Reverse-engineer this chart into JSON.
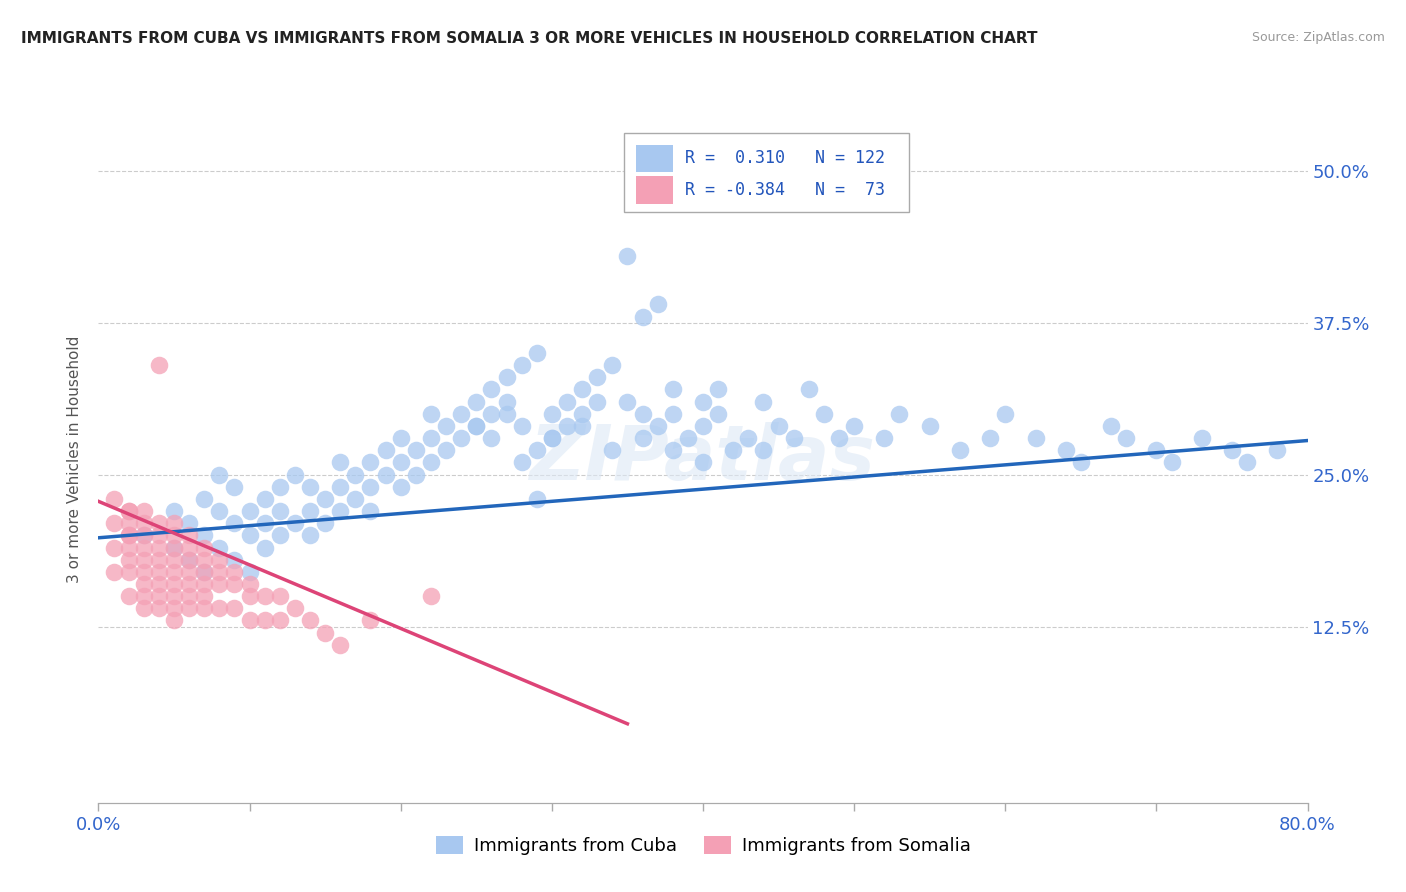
{
  "title": "IMMIGRANTS FROM CUBA VS IMMIGRANTS FROM SOMALIA 3 OR MORE VEHICLES IN HOUSEHOLD CORRELATION CHART",
  "source": "Source: ZipAtlas.com",
  "ylabel": "3 or more Vehicles in Household",
  "yticks": [
    "12.5%",
    "25.0%",
    "37.5%",
    "50.0%"
  ],
  "ytick_vals": [
    0.125,
    0.25,
    0.375,
    0.5
  ],
  "xlim": [
    0.0,
    0.8
  ],
  "ylim": [
    -0.02,
    0.545
  ],
  "cuba_color": "#a8c8f0",
  "somalia_color": "#f4a0b5",
  "cuba_line_color": "#2266bb",
  "somalia_line_color": "#dd4477",
  "legend_cuba_R": "0.310",
  "legend_cuba_N": "122",
  "legend_somalia_R": "-0.384",
  "legend_somalia_N": "73",
  "watermark": "ZIPatlas",
  "cuba_scatter_x": [
    0.03,
    0.05,
    0.05,
    0.06,
    0.06,
    0.07,
    0.07,
    0.07,
    0.08,
    0.08,
    0.08,
    0.09,
    0.09,
    0.09,
    0.1,
    0.1,
    0.1,
    0.11,
    0.11,
    0.11,
    0.12,
    0.12,
    0.12,
    0.13,
    0.13,
    0.14,
    0.14,
    0.14,
    0.15,
    0.15,
    0.16,
    0.16,
    0.16,
    0.17,
    0.17,
    0.18,
    0.18,
    0.18,
    0.19,
    0.19,
    0.2,
    0.2,
    0.2,
    0.21,
    0.21,
    0.22,
    0.22,
    0.22,
    0.23,
    0.23,
    0.24,
    0.24,
    0.25,
    0.25,
    0.26,
    0.26,
    0.27,
    0.27,
    0.28,
    0.28,
    0.29,
    0.29,
    0.3,
    0.3,
    0.31,
    0.31,
    0.32,
    0.32,
    0.33,
    0.33,
    0.34,
    0.35,
    0.35,
    0.36,
    0.36,
    0.37,
    0.37,
    0.38,
    0.38,
    0.39,
    0.4,
    0.4,
    0.41,
    0.41,
    0.42,
    0.43,
    0.44,
    0.44,
    0.45,
    0.46,
    0.47,
    0.48,
    0.49,
    0.5,
    0.52,
    0.53,
    0.55,
    0.57,
    0.59,
    0.6,
    0.62,
    0.64,
    0.65,
    0.67,
    0.68,
    0.7,
    0.71,
    0.73,
    0.75,
    0.76,
    0.78,
    0.25,
    0.26,
    0.27,
    0.28,
    0.29,
    0.3,
    0.32,
    0.34,
    0.36,
    0.38,
    0.4
  ],
  "cuba_scatter_y": [
    0.2,
    0.22,
    0.19,
    0.21,
    0.18,
    0.23,
    0.2,
    0.17,
    0.22,
    0.19,
    0.25,
    0.21,
    0.18,
    0.24,
    0.22,
    0.2,
    0.17,
    0.23,
    0.21,
    0.19,
    0.24,
    0.22,
    0.2,
    0.25,
    0.21,
    0.24,
    0.22,
    0.2,
    0.23,
    0.21,
    0.26,
    0.24,
    0.22,
    0.25,
    0.23,
    0.26,
    0.24,
    0.22,
    0.27,
    0.25,
    0.28,
    0.26,
    0.24,
    0.27,
    0.25,
    0.3,
    0.28,
    0.26,
    0.29,
    0.27,
    0.3,
    0.28,
    0.31,
    0.29,
    0.32,
    0.3,
    0.33,
    0.31,
    0.34,
    0.26,
    0.35,
    0.23,
    0.3,
    0.28,
    0.31,
    0.29,
    0.32,
    0.3,
    0.33,
    0.31,
    0.34,
    0.43,
    0.31,
    0.38,
    0.3,
    0.39,
    0.29,
    0.32,
    0.3,
    0.28,
    0.31,
    0.29,
    0.32,
    0.3,
    0.27,
    0.28,
    0.27,
    0.31,
    0.29,
    0.28,
    0.32,
    0.3,
    0.28,
    0.29,
    0.28,
    0.3,
    0.29,
    0.27,
    0.28,
    0.3,
    0.28,
    0.27,
    0.26,
    0.29,
    0.28,
    0.27,
    0.26,
    0.28,
    0.27,
    0.26,
    0.27,
    0.29,
    0.28,
    0.3,
    0.29,
    0.27,
    0.28,
    0.29,
    0.27,
    0.28,
    0.27,
    0.26
  ],
  "somalia_scatter_x": [
    0.01,
    0.01,
    0.01,
    0.01,
    0.02,
    0.02,
    0.02,
    0.02,
    0.02,
    0.02,
    0.02,
    0.02,
    0.02,
    0.03,
    0.03,
    0.03,
    0.03,
    0.03,
    0.03,
    0.03,
    0.03,
    0.03,
    0.04,
    0.04,
    0.04,
    0.04,
    0.04,
    0.04,
    0.04,
    0.04,
    0.04,
    0.05,
    0.05,
    0.05,
    0.05,
    0.05,
    0.05,
    0.05,
    0.05,
    0.05,
    0.06,
    0.06,
    0.06,
    0.06,
    0.06,
    0.06,
    0.06,
    0.07,
    0.07,
    0.07,
    0.07,
    0.07,
    0.07,
    0.08,
    0.08,
    0.08,
    0.08,
    0.09,
    0.09,
    0.09,
    0.1,
    0.1,
    0.1,
    0.11,
    0.11,
    0.12,
    0.12,
    0.13,
    0.14,
    0.15,
    0.16,
    0.18,
    0.22
  ],
  "somalia_scatter_y": [
    0.23,
    0.21,
    0.19,
    0.17,
    0.22,
    0.21,
    0.2,
    0.19,
    0.18,
    0.17,
    0.15,
    0.22,
    0.2,
    0.22,
    0.21,
    0.2,
    0.19,
    0.18,
    0.17,
    0.16,
    0.15,
    0.14,
    0.21,
    0.2,
    0.19,
    0.18,
    0.17,
    0.16,
    0.15,
    0.14,
    0.34,
    0.21,
    0.2,
    0.19,
    0.18,
    0.17,
    0.16,
    0.15,
    0.14,
    0.13,
    0.2,
    0.19,
    0.18,
    0.17,
    0.16,
    0.15,
    0.14,
    0.19,
    0.18,
    0.17,
    0.16,
    0.15,
    0.14,
    0.18,
    0.17,
    0.16,
    0.14,
    0.17,
    0.16,
    0.14,
    0.16,
    0.15,
    0.13,
    0.15,
    0.13,
    0.15,
    0.13,
    0.14,
    0.13,
    0.12,
    0.11,
    0.13,
    0.15
  ],
  "cuba_trendline_x": [
    0.0,
    0.8
  ],
  "cuba_trendline_y": [
    0.198,
    0.278
  ],
  "somalia_trendline_x": [
    0.0,
    0.35
  ],
  "somalia_trendline_y": [
    0.228,
    0.045
  ]
}
